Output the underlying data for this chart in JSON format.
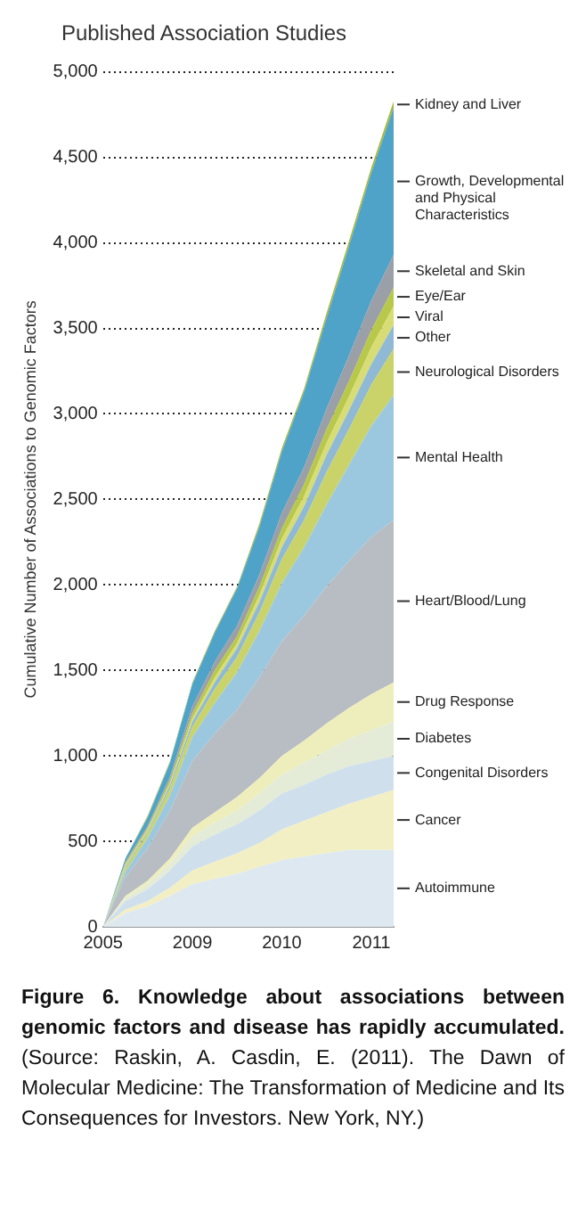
{
  "chart_data": {
    "type": "area",
    "stacked": true,
    "title": "Published Association Studies",
    "ylabel": "Cumulative Number of Associations to Genomic Factors",
    "categories": [
      "2005",
      null,
      null,
      null,
      "2009",
      null,
      null,
      null,
      "2010",
      null,
      null,
      null,
      "2011",
      null
    ],
    "ylim": [
      0,
      5000
    ],
    "yticks": [
      0,
      {
        "value": 500,
        "label": "500"
      },
      {
        "value": 1000,
        "label": "1,000"
      },
      {
        "value": 1500,
        "label": "1,500"
      },
      {
        "value": 2000,
        "label": "2,000"
      },
      {
        "value": 2500,
        "label": "2,500"
      },
      {
        "value": 3000,
        "label": "3,000"
      },
      {
        "value": 3500,
        "label": "3,500"
      },
      {
        "value": 4000,
        "label": "4,000"
      },
      {
        "value": 4500,
        "label": "4,500"
      },
      {
        "value": 5000,
        "label": "5,000"
      }
    ],
    "grid": "y",
    "legend": false,
    "series": [
      {
        "name": "Autoimmune",
        "color": "#dde8f0",
        "values": [
          0,
          80,
          120,
          180,
          250,
          280,
          310,
          350,
          390,
          410,
          430,
          450,
          450,
          450
        ]
      },
      {
        "name": "Cancer",
        "color": "#f2efc4",
        "values": [
          0,
          20,
          30,
          50,
          80,
          100,
          120,
          140,
          180,
          210,
          240,
          270,
          310,
          350
        ]
      },
      {
        "name": "Congenital Disorders",
        "color": "#cfe0ec",
        "values": [
          0,
          50,
          70,
          100,
          140,
          160,
          170,
          190,
          210,
          210,
          220,
          220,
          210,
          200
        ]
      },
      {
        "name": "Diabetes",
        "color": "#e4ebd6",
        "values": [
          0,
          20,
          30,
          40,
          60,
          70,
          80,
          100,
          110,
          130,
          140,
          160,
          180,
          200
        ]
      },
      {
        "name": "Drug Response",
        "color": "#eeeebc",
        "values": [
          0,
          10,
          20,
          30,
          50,
          60,
          80,
          90,
          110,
          130,
          160,
          180,
          210,
          230
        ]
      },
      {
        "name": "Heart/Blood/Lung",
        "color": "#b8bcc3",
        "values": [
          0,
          110,
          190,
          280,
          390,
          460,
          510,
          590,
          670,
          730,
          800,
          860,
          920,
          950
        ]
      },
      {
        "name": "Mental Health",
        "color": "#9cc8df",
        "values": [
          0,
          30,
          60,
          90,
          140,
          180,
          220,
          270,
          340,
          400,
          480,
          560,
          650,
          730
        ]
      },
      {
        "name": "Neurological Disorders",
        "color": "#c9d36a",
        "values": [
          0,
          20,
          30,
          40,
          60,
          80,
          90,
          110,
          140,
          160,
          190,
          210,
          240,
          270
        ]
      },
      {
        "name": "Other",
        "color": "#8fb9d4",
        "values": [
          0,
          10,
          10,
          20,
          30,
          40,
          50,
          60,
          70,
          80,
          100,
          110,
          120,
          140
        ]
      },
      {
        "name": "Viral",
        "color": "#d8dc74",
        "values": [
          0,
          10,
          10,
          10,
          20,
          30,
          30,
          40,
          50,
          60,
          70,
          80,
          100,
          110
        ]
      },
      {
        "name": "Eye/Ear",
        "color": "#b8c84a",
        "values": [
          0,
          10,
          10,
          20,
          30,
          40,
          40,
          50,
          60,
          70,
          80,
          90,
          100,
          110
        ]
      },
      {
        "name": "Skeletal and Skin",
        "color": "#9a9fa8",
        "values": [
          0,
          10,
          10,
          20,
          40,
          50,
          60,
          70,
          90,
          100,
          120,
          150,
          170,
          190
        ]
      },
      {
        "name": "Growth, Developmental and Physical Characteristics",
        "color": "#4fa3c9",
        "values": [
          0,
          20,
          50,
          80,
          130,
          170,
          220,
          280,
          360,
          440,
          530,
          640,
          750,
          860
        ]
      },
      {
        "name": "Kidney and Liver",
        "color": "#a7b83a",
        "values": [
          0,
          0,
          10,
          10,
          10,
          10,
          10,
          20,
          20,
          20,
          30,
          30,
          30,
          40
        ]
      }
    ],
    "annotations": [
      "Figure 6. Knowledge about associations between genomic factors and disease has rapidly accumulated.",
      "(Source: Raskin, A. Casdin, E. (2011). The Dawn of Molecular Medicine: The Transformation of Medicine and Its Consequences for Investors. New York, NY.)"
    ]
  }
}
